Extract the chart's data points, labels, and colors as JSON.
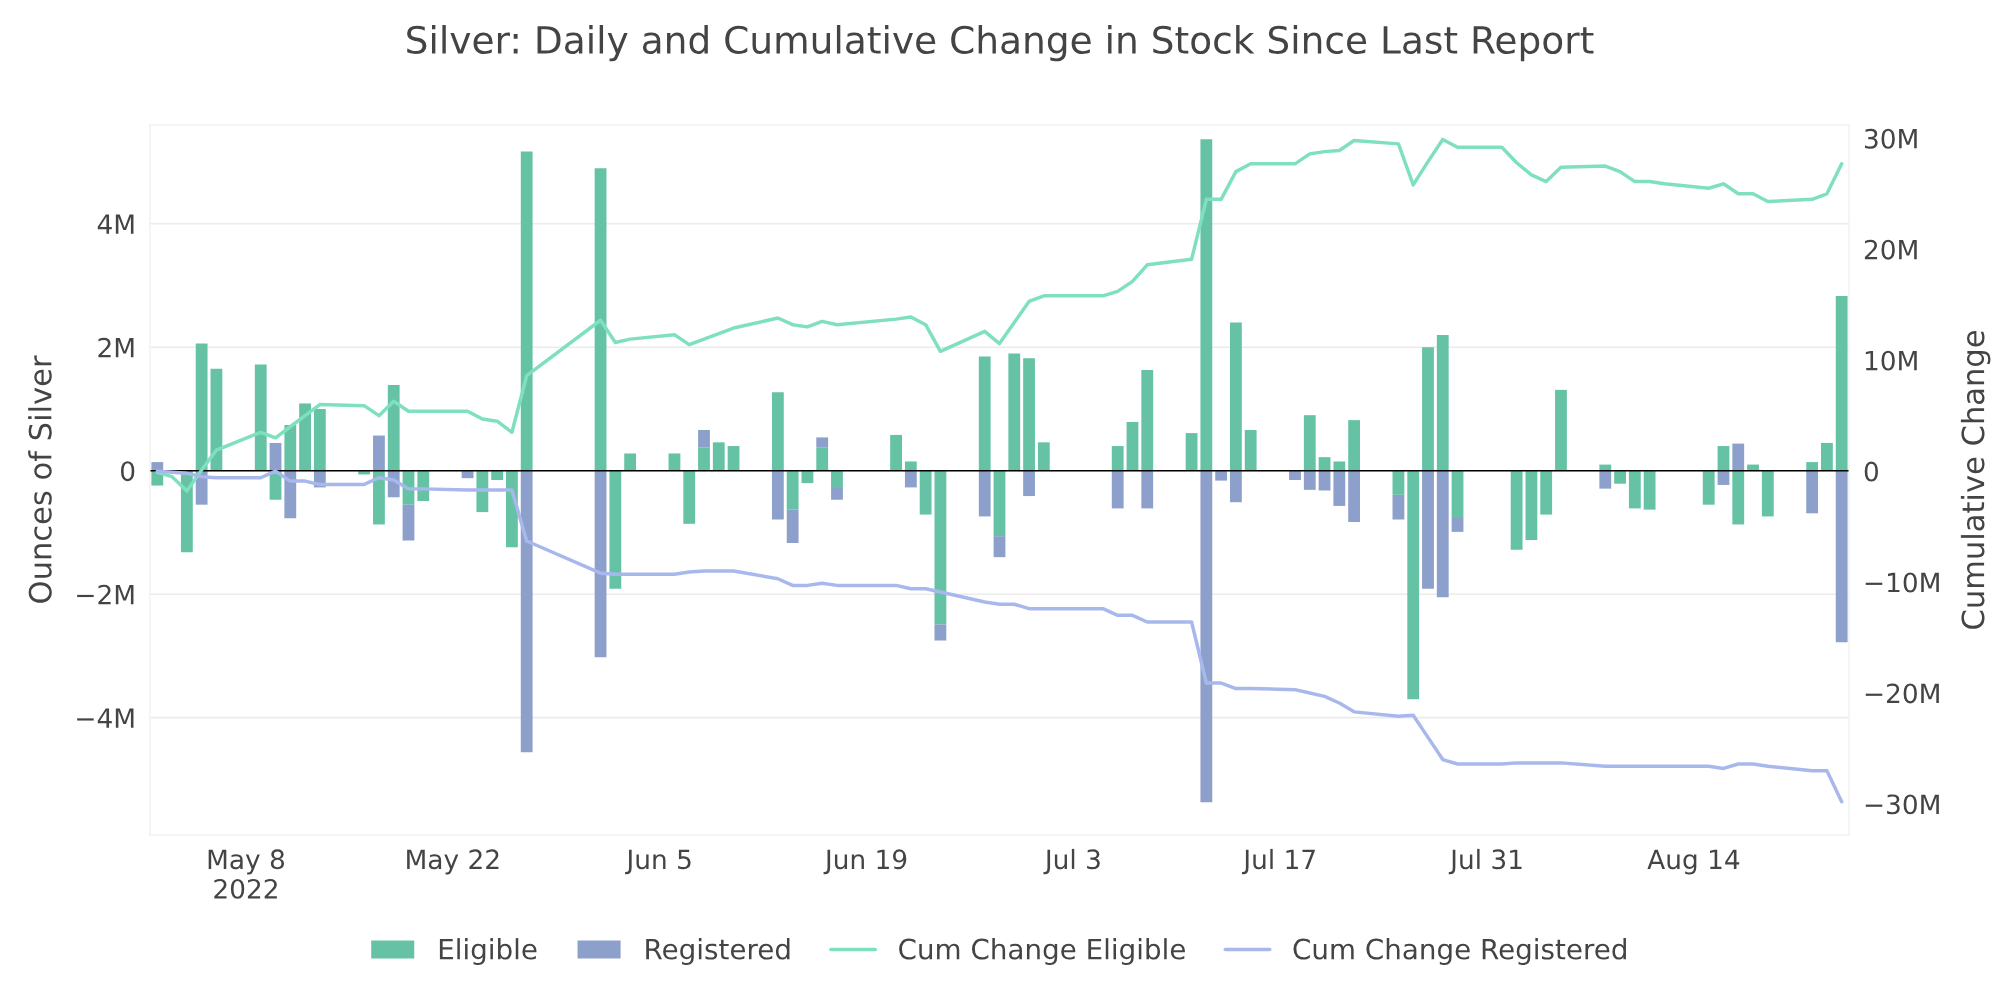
{
  "chart_data": {
    "type": "bar",
    "title": "Silver: Daily and Cumulative Change in Stock Since Last Report",
    "ylabel": "Ounces of Silver",
    "y2label": "Cumulative Change",
    "stacked": true,
    "grid": "y",
    "legend": "bottom",
    "x": [
      "2022-05-02",
      "2022-05-03",
      "2022-05-04",
      "2022-05-05",
      "2022-05-06",
      "2022-05-09",
      "2022-05-10",
      "2022-05-11",
      "2022-05-12",
      "2022-05-13",
      "2022-05-16",
      "2022-05-17",
      "2022-05-18",
      "2022-05-19",
      "2022-05-20",
      "2022-05-23",
      "2022-05-24",
      "2022-05-25",
      "2022-05-26",
      "2022-05-27",
      "2022-06-01",
      "2022-06-02",
      "2022-06-03",
      "2022-06-06",
      "2022-06-07",
      "2022-06-08",
      "2022-06-09",
      "2022-06-10",
      "2022-06-13",
      "2022-06-14",
      "2022-06-15",
      "2022-06-16",
      "2022-06-17",
      "2022-06-21",
      "2022-06-22",
      "2022-06-23",
      "2022-06-24",
      "2022-06-27",
      "2022-06-28",
      "2022-06-29",
      "2022-06-30",
      "2022-07-01",
      "2022-07-05",
      "2022-07-06",
      "2022-07-07",
      "2022-07-08",
      "2022-07-11",
      "2022-07-12",
      "2022-07-13",
      "2022-07-14",
      "2022-07-15",
      "2022-07-18",
      "2022-07-19",
      "2022-07-20",
      "2022-07-21",
      "2022-07-22",
      "2022-07-25",
      "2022-07-26",
      "2022-07-27",
      "2022-07-28",
      "2022-07-29",
      "2022-08-01",
      "2022-08-02",
      "2022-08-03",
      "2022-08-04",
      "2022-08-05",
      "2022-08-08",
      "2022-08-09",
      "2022-08-10",
      "2022-08-11",
      "2022-08-12",
      "2022-08-15",
      "2022-08-16",
      "2022-08-17",
      "2022-08-18",
      "2022-08-19",
      "2022-08-22",
      "2022-08-23",
      "2022-08-24"
    ],
    "series": [
      {
        "name": "Eligible",
        "color": "#66c2a5",
        "values": [
          -240000.0,
          null,
          -1320000.0,
          2060000.0,
          1650000.0,
          1720000.0,
          -470000.0,
          740000.0,
          1090000.0,
          1000000.0,
          -60000.0,
          -870000.0,
          1390000.0,
          -550000.0,
          -490000.0,
          0,
          -670000.0,
          -150000.0,
          -1240000.0,
          5170000.0,
          4900000.0,
          -1910000.0,
          280000.0,
          280000.0,
          -860000.0,
          380000.0,
          460000.0,
          400000.0,
          1270000.0,
          -630000.0,
          -200000.0,
          380000.0,
          -280000.0,
          580000.0,
          150000.0,
          -710000.0,
          -2490000.0,
          1850000.0,
          -1060000.0,
          1900000.0,
          1820000.0,
          460000.0,
          null,
          400000.0,
          790000.0,
          1630000.0,
          610000.0,
          5370000.0,
          0,
          2400000.0,
          660000.0,
          0,
          900000.0,
          220000.0,
          150000.0,
          820000.0,
          -390000.0,
          -3700000.0,
          2000000.0,
          2200000.0,
          -750000.0,
          0,
          -1280000.0,
          -1120000.0,
          -710000.0,
          1310000.0,
          100000.0,
          -210000.0,
          -610000.0,
          -630000.0,
          0,
          -550000.0,
          400000.0,
          -870000.0,
          100000.0,
          -740000.0,
          140000.0,
          450000.0,
          2830000.0
        ]
      },
      {
        "name": "Registered",
        "color": "#8da0cb",
        "values": [
          140000.0,
          0,
          0,
          -550000.0,
          0,
          0,
          450000.0,
          -770000.0,
          0,
          -270000.0,
          0,
          570000.0,
          -430000.0,
          -580000.0,
          0,
          -120000.0,
          0,
          0,
          0,
          -4560000.0,
          -3020000.0,
          0,
          0,
          0,
          0,
          280000.0,
          0,
          0,
          -790000.0,
          -540000.0,
          0,
          160000.0,
          -190000.0,
          0,
          -270000.0,
          0,
          -260000.0,
          -740000.0,
          -340000.0,
          0,
          -410000.0,
          0,
          0,
          -610000.0,
          0,
          -610000.0,
          0,
          -5370000.0,
          -160000.0,
          -510000.0,
          0,
          -150000.0,
          -310000.0,
          -320000.0,
          -570000.0,
          -830000.0,
          -400000.0,
          0,
          -1910000.0,
          -2050000.0,
          -240000.0,
          0,
          0,
          0,
          0,
          0,
          -290000.0,
          0,
          0,
          0,
          0,
          0,
          -230000.0,
          440000.0,
          0,
          0,
          -690000.0,
          0,
          -2780000.0
        ]
      },
      {
        "name": "Cum Change Eligible",
        "type": "line",
        "axis": "y2",
        "color": "#7fe0c0",
        "values": [
          -100000.0,
          -500000.0,
          -1800000.0,
          100000.0,
          1900000.0,
          3500000.0,
          3000000.0,
          4000000.0,
          5000000.0,
          6000000.0,
          5900000.0,
          5000000.0,
          6300000.0,
          5400000.0,
          5400000.0,
          5400000.0,
          4700000.0,
          4500000.0,
          3500000.0,
          8600000.0,
          13600000.0,
          11600000.0,
          11900000.0,
          12300000.0,
          11400000.0,
          11900000.0,
          12400000.0,
          12900000.0,
          13800000.0,
          13200000.0,
          13000000.0,
          13500000.0,
          13200000.0,
          13700000.0,
          13900000.0,
          13200000.0,
          10800000.0,
          12600000.0,
          11500000.0,
          13400000.0,
          15300000.0,
          15800000.0,
          15800000.0,
          16200000.0,
          17100000.0,
          18600000.0,
          19100000.0,
          24500000.0,
          24500000.0,
          27000000.0,
          27700000.0,
          27700000.0,
          28600000.0,
          28800000.0,
          28900000.0,
          29800000.0,
          29500000.0,
          25800000.0,
          27900000.0,
          29900000.0,
          29200000.0,
          29200000.0,
          27800000.0,
          26700000.0,
          26100000.0,
          27400000.0,
          27500000.0,
          27000000.0,
          26100000.0,
          26100000.0,
          25900000.0,
          25500000.0,
          25900000.0,
          25000000.0,
          25000000.0,
          24300000.0,
          24500000.0,
          25000000.0,
          27700000.0
        ]
      },
      {
        "name": "Cum Change Registered",
        "type": "line",
        "axis": "y2",
        "color": "#a8b8ec",
        "values": [
          0,
          -100000.0,
          -200000.0,
          -500000.0,
          -600000.0,
          -600000.0,
          0,
          -900000.0,
          -900000.0,
          -1200000.0,
          -1200000.0,
          -600000.0,
          -800000.0,
          -1600000.0,
          -1600000.0,
          -1700000.0,
          -1700000.0,
          -1700000.0,
          -1700000.0,
          -6300000.0,
          -9200000.0,
          -9300000.0,
          -9300000.0,
          -9300000.0,
          -9100000.0,
          -9000000.0,
          -9000000.0,
          -9000000.0,
          -9700000.0,
          -10300000.0,
          -10300000.0,
          -10100000.0,
          -10300000.0,
          -10300000.0,
          -10600000.0,
          -10600000.0,
          -10900000.0,
          -11800000.0,
          -12000000.0,
          -12000000.0,
          -12400000.0,
          -12400000.0,
          -12400000.0,
          -13000000.0,
          -13000000.0,
          -13600000.0,
          -13600000.0,
          -19100000.0,
          -19100000.0,
          -19600000.0,
          -19600000.0,
          -19700000.0,
          -20000000.0,
          -20300000.0,
          -20900000.0,
          -21700000.0,
          -22100000.0,
          -22000000.0,
          -24000000.0,
          -26000000.0,
          -26400000.0,
          -26400000.0,
          -26300000.0,
          -26300000.0,
          -26300000.0,
          -26300000.0,
          -26600000.0,
          -26600000.0,
          -26600000.0,
          -26600000.0,
          -26600000.0,
          -26600000.0,
          -26800000.0,
          -26400000.0,
          -26400000.0,
          -26600000.0,
          -27000000.0,
          -27000000.0,
          -29800000.0
        ]
      }
    ],
    "xlim": [
      "2022-05-01T12:00",
      "2022-08-24T12:00"
    ],
    "xticks": [
      {
        "value": "2022-05-08",
        "label": "May 8\n2022"
      },
      {
        "value": "2022-05-22",
        "label": "May 22"
      },
      {
        "value": "2022-06-05",
        "label": "Jun 5"
      },
      {
        "value": "2022-06-19",
        "label": "Jun 19"
      },
      {
        "value": "2022-07-03",
        "label": "Jul 3"
      },
      {
        "value": "2022-07-17",
        "label": "Jul 17"
      },
      {
        "value": "2022-07-31",
        "label": "Jul 31"
      },
      {
        "value": "2022-08-14",
        "label": "Aug 14"
      }
    ],
    "ylim": [
      -5900000.0,
      5600000.0
    ],
    "yticks": [
      {
        "value": -4000000.0,
        "label": "−4M"
      },
      {
        "value": -2000000.0,
        "label": "−2M"
      },
      0,
      {
        "value": 2000000.0,
        "label": "2M"
      },
      {
        "value": 4000000.0,
        "label": "4M"
      }
    ],
    "y2lim": [
      -32800000.0,
      31200000.0
    ],
    "y2ticks": [
      {
        "value": -30000000.0,
        "label": "−30M"
      },
      {
        "value": -20000000.0,
        "label": "−20M"
      },
      {
        "value": -10000000.0,
        "label": "−10M"
      },
      0,
      {
        "value": 10000000.0,
        "label": "10M"
      },
      {
        "value": 20000000.0,
        "label": "20M"
      },
      {
        "value": 30000000.0,
        "label": "30M"
      }
    ],
    "ref_lines": [
      {
        "axis": "y",
        "value": 0,
        "color": "#000000"
      }
    ]
  }
}
